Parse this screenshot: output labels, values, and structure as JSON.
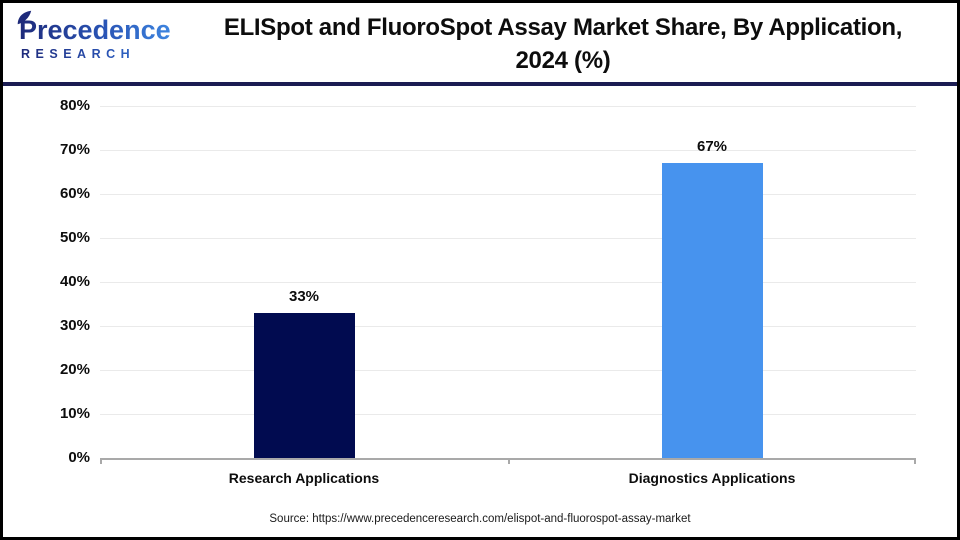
{
  "header": {
    "logo_name": "Precedence",
    "logo_subtitle": "RESEARCH",
    "title_line1": "ELISpot and FluoroSpot Assay Market Share, By Application,",
    "title_line2": "2024 (%)"
  },
  "chart_data": {
    "type": "bar",
    "title": "ELISpot and FluoroSpot Assay Market Share, By Application, 2024 (%)",
    "categories": [
      "Research Applications",
      "Diagnostics Applications"
    ],
    "values": [
      33,
      67
    ],
    "value_labels": [
      "33%",
      "67%"
    ],
    "bar_colors": [
      "#010b50",
      "#4793ee"
    ],
    "ylim": [
      0,
      80
    ],
    "yticks": [
      0,
      10,
      20,
      30,
      40,
      50,
      60,
      70,
      80
    ],
    "ytick_labels": [
      "0%",
      "10%",
      "20%",
      "30%",
      "40%",
      "50%",
      "60%",
      "70%",
      "80%"
    ],
    "grid": true,
    "legend": "none",
    "xlabel": "",
    "ylabel": ""
  },
  "footer": {
    "source": "Source: https://www.precedenceresearch.com/elispot-and-fluorospot-assay-market"
  },
  "colors": {
    "header_divider": "#1b1c52",
    "axis": "#a9a9a9",
    "gridline": "#eaeaea",
    "frame_border": "#000000"
  }
}
